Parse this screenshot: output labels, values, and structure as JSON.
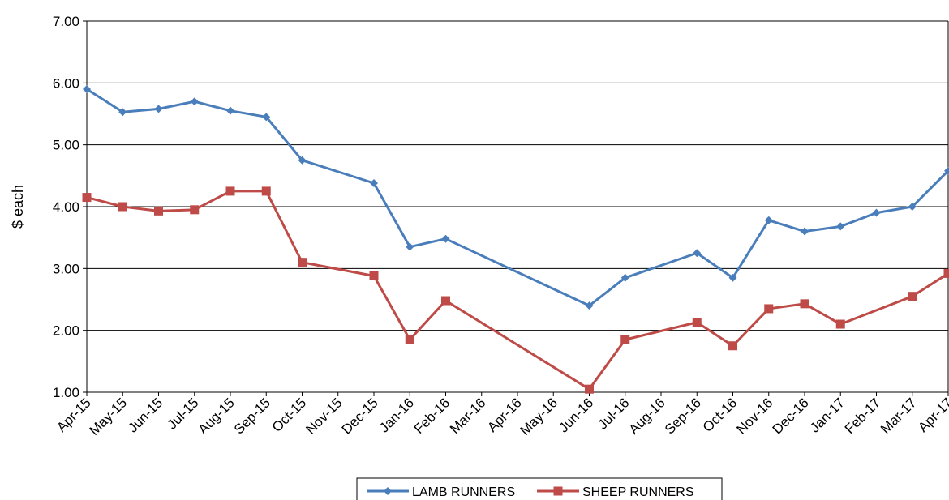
{
  "chart_data": {
    "type": "line",
    "title": "",
    "xlabel": "",
    "ylabel": "$ each",
    "ylim": [
      1,
      7
    ],
    "yticks": [
      "1.00",
      "2.00",
      "3.00",
      "4.00",
      "5.00",
      "6.00",
      "7.00"
    ],
    "grid": "horizontal",
    "legend_position": "bottom",
    "categories": [
      "Apr-15",
      "May-15",
      "Jun-15",
      "Jul-15",
      "Aug-15",
      "Sep-15",
      "Oct-15",
      "Nov-15",
      "Dec-15",
      "Jan-16",
      "Feb-16",
      "Mar-16",
      "Apr-16",
      "May-16",
      "Jun-16",
      "Jul-16",
      "Aug-16",
      "Sep-16",
      "Oct-16",
      "Nov-16",
      "Dec-16",
      "Jan-17",
      "Feb-17",
      "Mar-17",
      "Apr-17"
    ],
    "series": [
      {
        "name": "LAMB RUNNERS",
        "color": "#4A7EBB",
        "marker": "diamond",
        "values": [
          5.9,
          5.53,
          5.58,
          5.7,
          5.55,
          5.45,
          4.75,
          null,
          4.38,
          3.35,
          3.48,
          null,
          null,
          null,
          2.4,
          2.85,
          null,
          3.25,
          2.85,
          3.78,
          3.6,
          3.68,
          3.9,
          4.0,
          4.58
        ]
      },
      {
        "name": "SHEEP RUNNERS",
        "color": "#BE4B48",
        "marker": "square",
        "values": [
          4.15,
          4.0,
          3.93,
          3.95,
          4.25,
          4.25,
          3.1,
          null,
          2.88,
          1.85,
          2.48,
          null,
          null,
          null,
          1.05,
          1.85,
          null,
          2.13,
          1.75,
          2.35,
          2.43,
          2.1,
          null,
          2.55,
          2.92
        ]
      }
    ]
  }
}
